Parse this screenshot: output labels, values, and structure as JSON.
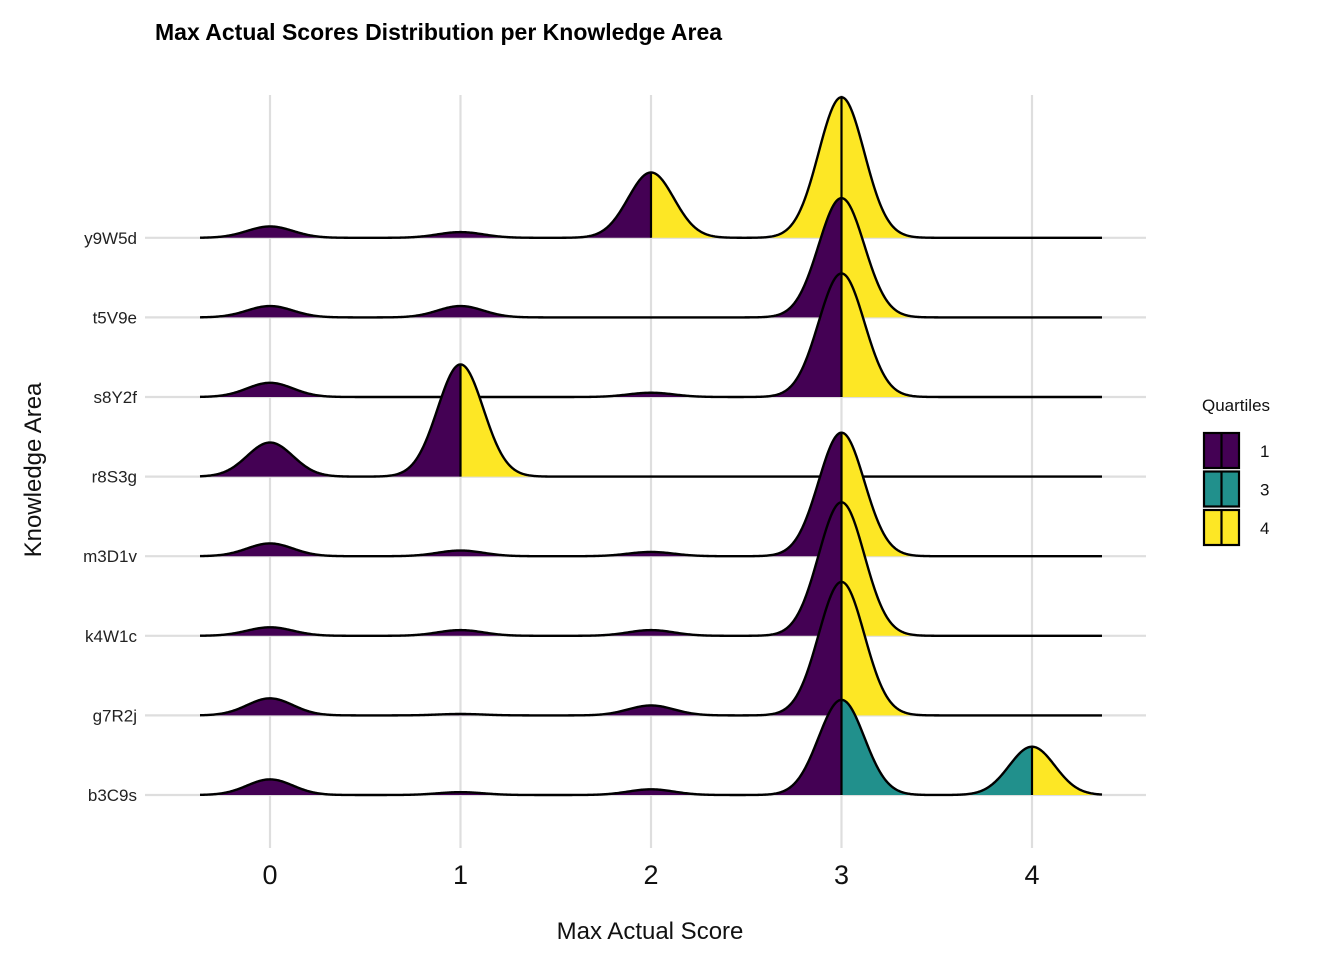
{
  "chart_data": {
    "type": "ridgeline",
    "title": "Max Actual Scores Distribution per Knowledge Area",
    "xlabel": "Max Actual Score",
    "ylabel": "Knowledge Area",
    "xlim": [
      -0.35,
      4.35
    ],
    "x_ticks": [
      0,
      1,
      2,
      3,
      4
    ],
    "grid": true,
    "bandwidth": 0.12,
    "ridge_height_scale": 142,
    "categories": [
      "b3C9s",
      "g7R2j",
      "k4W1c",
      "m3D1v",
      "r8S3g",
      "s8Y2f",
      "t5V9e",
      "y9W5d"
    ],
    "series": [
      {
        "name": "b3C9s",
        "values": [
          {
            "x": 0,
            "w": 0.11
          },
          {
            "x": 1,
            "w": 0.02
          },
          {
            "x": 2,
            "w": 0.04
          },
          {
            "x": 3,
            "w": 0.67
          },
          {
            "x": 4,
            "w": 0.34
          }
        ],
        "quartile_breaks": [
          3,
          4
        ],
        "quartile_fills": [
          "1",
          "3",
          "4"
        ]
      },
      {
        "name": "g7R2j",
        "values": [
          {
            "x": 0,
            "w": 0.12
          },
          {
            "x": 1,
            "w": 0.01
          },
          {
            "x": 2,
            "w": 0.07
          },
          {
            "x": 3,
            "w": 0.94
          }
        ],
        "quartile_breaks": [
          3
        ],
        "quartile_fills": [
          "1",
          "4"
        ]
      },
      {
        "name": "k4W1c",
        "values": [
          {
            "x": 0,
            "w": 0.06
          },
          {
            "x": 1,
            "w": 0.04
          },
          {
            "x": 2,
            "w": 0.04
          },
          {
            "x": 3,
            "w": 0.94
          }
        ],
        "quartile_breaks": [
          3
        ],
        "quartile_fills": [
          "1",
          "4"
        ]
      },
      {
        "name": "m3D1v",
        "values": [
          {
            "x": 0,
            "w": 0.09
          },
          {
            "x": 1,
            "w": 0.04
          },
          {
            "x": 2,
            "w": 0.03
          },
          {
            "x": 3,
            "w": 0.87
          }
        ],
        "quartile_breaks": [
          3
        ],
        "quartile_fills": [
          "1",
          "4"
        ]
      },
      {
        "name": "r8S3g",
        "values": [
          {
            "x": 0,
            "w": 0.24
          },
          {
            "x": 1,
            "w": 0.79
          }
        ],
        "quartile_breaks": [
          1
        ],
        "quartile_fills": [
          "1",
          "4"
        ]
      },
      {
        "name": "s8Y2f",
        "values": [
          {
            "x": 0,
            "w": 0.1
          },
          {
            "x": 2,
            "w": 0.03
          },
          {
            "x": 3,
            "w": 0.87
          }
        ],
        "quartile_breaks": [
          3
        ],
        "quartile_fills": [
          "1",
          "4"
        ]
      },
      {
        "name": "t5V9e",
        "values": [
          {
            "x": 0,
            "w": 0.08
          },
          {
            "x": 1,
            "w": 0.08
          },
          {
            "x": 3,
            "w": 0.84
          }
        ],
        "quartile_breaks": [
          3
        ],
        "quartile_fills": [
          "1",
          "4"
        ]
      },
      {
        "name": "y9W5d",
        "values": [
          {
            "x": 0,
            "w": 0.08
          },
          {
            "x": 1,
            "w": 0.04
          },
          {
            "x": 2,
            "w": 0.46
          },
          {
            "x": 3,
            "w": 0.99
          }
        ],
        "quartile_breaks": [
          2,
          3
        ],
        "quartile_fills": [
          "1",
          "4",
          "4"
        ]
      }
    ],
    "legend": {
      "title": "Quartiles",
      "position": "right",
      "items": [
        {
          "label": "1",
          "color": "#440154"
        },
        {
          "label": "3",
          "color": "#21908C"
        },
        {
          "label": "4",
          "color": "#FDE725"
        }
      ]
    }
  }
}
